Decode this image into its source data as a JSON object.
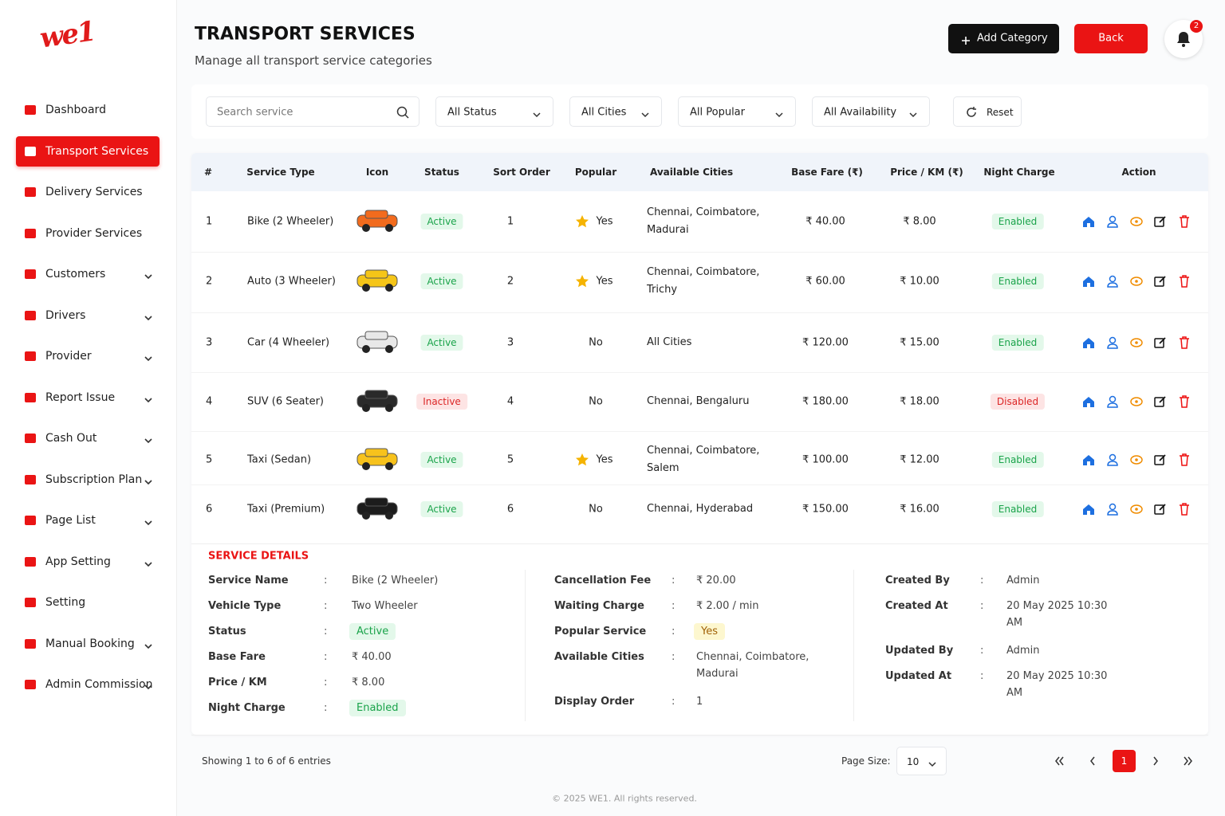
{
  "sidebar": {
    "logo": "we1",
    "nav": [
      {
        "label": "Dashboard",
        "active": false,
        "expandable": false
      },
      {
        "label": "Transport Services",
        "active": true,
        "expandable": false
      },
      {
        "label": "Delivery Services",
        "active": false,
        "expandable": false
      },
      {
        "label": "Provider Services",
        "active": false,
        "expandable": false
      },
      {
        "label": "Customers",
        "active": false,
        "expandable": true
      },
      {
        "label": "Drivers",
        "active": false,
        "expandable": true
      },
      {
        "label": "Provider",
        "active": false,
        "expandable": true
      },
      {
        "label": "Report Issue",
        "active": false,
        "expandable": true
      },
      {
        "label": "Cash Out",
        "active": false,
        "expandable": true
      },
      {
        "label": "Subscription Plan",
        "active": false,
        "expandable": true
      },
      {
        "label": "Page List",
        "active": false,
        "expandable": true
      },
      {
        "label": "App Setting",
        "active": false,
        "expandable": true
      },
      {
        "label": "Setting",
        "active": false,
        "expandable": false
      },
      {
        "label": "Manual Booking",
        "active": false,
        "expandable": true
      },
      {
        "label": "Admin Commission",
        "active": false,
        "expandable": true
      }
    ]
  },
  "header": {
    "title": "TRANSPORT SERVICES",
    "subtitle": "Manage all transport service categories",
    "add_button": "Add Category",
    "back_button": "Back",
    "notification_count": 2
  },
  "filters": {
    "search_placeholder": "Search service",
    "selects": [
      "All Status",
      "All Cities",
      "All Popular",
      "All Availability"
    ],
    "reset": "Reset"
  },
  "table": {
    "columns": [
      "#",
      "Service Type",
      "Icon",
      "Status",
      "Sort Order",
      "Popular",
      "Available Cities",
      "Base Fare (₹)",
      "Price / KM (₹)",
      "Night Charge",
      "Action"
    ],
    "rows": [
      {
        "id": 1,
        "service_type": "Bike (2 Wheeler)",
        "icon_color": "#f26b1d",
        "status": "Active",
        "status_active": true,
        "sort_order": 1,
        "popular": "Yes",
        "popular_star": true,
        "cities": "Chennai, Coimbatore, Madurai",
        "base_fare": "₹ 40.00",
        "price_km": "₹ 8.00",
        "night_charge": "Enabled",
        "night_enabled": true
      },
      {
        "id": 2,
        "service_type": "Auto (3 Wheeler)",
        "icon_color": "#f5c518",
        "status": "Active",
        "status_active": true,
        "sort_order": 2,
        "popular": "Yes",
        "popular_star": true,
        "cities": "Chennai, Coimbatore, Trichy",
        "base_fare": "₹ 60.00",
        "price_km": "₹ 10.00",
        "night_charge": "Enabled",
        "night_enabled": true
      },
      {
        "id": 3,
        "service_type": "Car (4 Wheeler)",
        "icon_color": "#e8e8e8",
        "status": "Active",
        "status_active": true,
        "sort_order": 3,
        "popular": "No",
        "popular_star": false,
        "cities": "All Cities",
        "base_fare": "₹ 120.00",
        "price_km": "₹ 15.00",
        "night_charge": "Enabled",
        "night_enabled": true
      },
      {
        "id": 4,
        "service_type": "SUV (6 Seater)",
        "icon_color": "#2a2a2a",
        "status": "Inactive",
        "status_active": false,
        "sort_order": 4,
        "popular": "No",
        "popular_star": false,
        "cities": "Chennai, Bengaluru",
        "base_fare": "₹ 180.00",
        "price_km": "₹ 18.00",
        "night_charge": "Disabled",
        "night_enabled": false
      },
      {
        "id": 5,
        "service_type": "Taxi (Sedan)",
        "icon_color": "#f7c21c",
        "status": "Active",
        "status_active": true,
        "sort_order": 5,
        "popular": "Yes",
        "popular_star": true,
        "cities": "Chennai, Coimbatore, Salem",
        "base_fare": "₹ 100.00",
        "price_km": "₹ 12.00",
        "night_charge": "Enabled",
        "night_enabled": true
      },
      {
        "id": 6,
        "service_type": "Taxi (Premium)",
        "icon_color": "#1c1c1c",
        "status": "Active",
        "status_active": true,
        "sort_order": 6,
        "popular": "No",
        "popular_star": false,
        "cities": "Chennai, Hyderabad",
        "base_fare": "₹ 150.00",
        "price_km": "₹ 16.00",
        "night_charge": "Enabled",
        "night_enabled": true
      }
    ]
  },
  "details": {
    "title": "SERVICE DETAILS",
    "columns": [
      [
        {
          "label": "Service Name",
          "value": "Bike (2 Wheeler)"
        },
        {
          "label": "Vehicle Type",
          "value": "Two Wheeler"
        },
        {
          "label": "Status",
          "value": "Active",
          "badge": "green"
        },
        {
          "label": "Base Fare",
          "value": "₹ 40.00"
        },
        {
          "label": "Price / KM",
          "value": "₹ 8.00"
        },
        {
          "label": "Night Charge",
          "value": "Enabled",
          "badge": "green"
        }
      ],
      [
        {
          "label": "Cancellation Fee",
          "value": "₹ 20.00"
        },
        {
          "label": "Waiting Charge",
          "value": "₹ 2.00 / min"
        },
        {
          "label": "Popular Service",
          "value": "Yes",
          "badge": "yellow"
        },
        {
          "label": "Available Cities",
          "value": "Chennai, Coimbatore, Madurai"
        },
        {
          "label": "Display Order",
          "value": 1
        }
      ],
      [
        {
          "label": "Created By",
          "value": "Admin"
        },
        {
          "label": "Created At",
          "value": "20 May 2025  10:30 AM"
        },
        {
          "label": "Updated By",
          "value": "Admin"
        },
        {
          "label": "Updated At",
          "value": "20 May 2025  10:30 AM"
        }
      ]
    ]
  },
  "pagination": {
    "summary": "Showing 1 to 6 of 6 entries",
    "page_size_label": "Page Size:",
    "page_size": 10,
    "current_page": 1
  },
  "copyright": "© 2025 WE1. All rights reserved."
}
